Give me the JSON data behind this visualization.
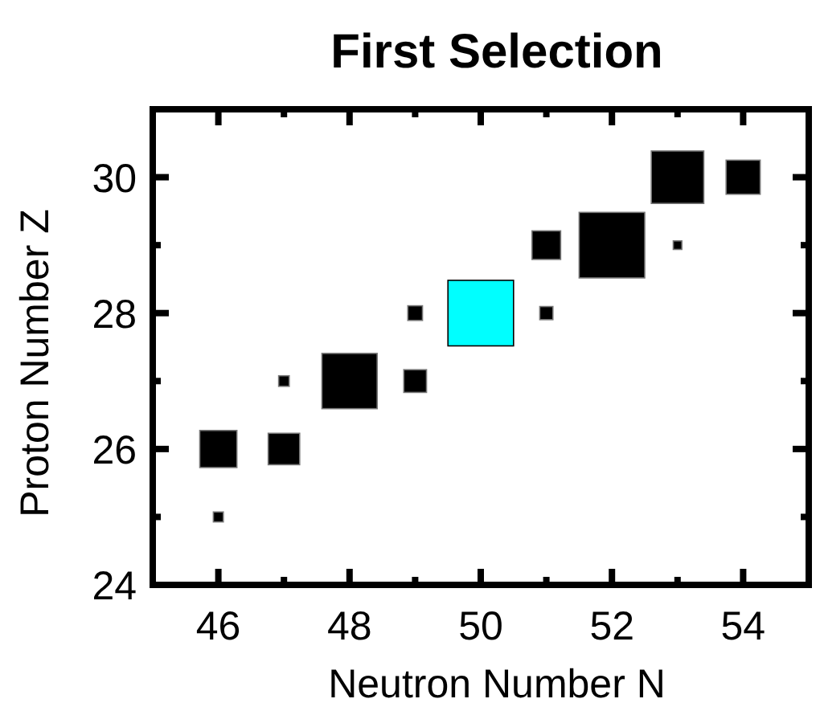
{
  "chart_data": {
    "type": "bubble",
    "title": "First Selection",
    "xlabel": "Neutron Number N",
    "ylabel": "Proton Number Z",
    "marker": "square",
    "x": [
      46,
      46,
      47,
      47,
      48,
      49,
      49,
      50,
      51,
      51,
      52,
      53,
      53,
      54
    ],
    "values": [
      25,
      26,
      26,
      27,
      27,
      27,
      28,
      28,
      28,
      29,
      29,
      30,
      29,
      30
    ],
    "sizes": [
      0.023,
      0.32,
      0.23,
      0.026,
      0.71,
      0.12,
      0.05,
      1,
      0.04,
      0.19,
      1,
      0.64,
      0.017,
      0.27
    ],
    "colors": [
      "#000000",
      "#000000",
      "#000000",
      "#000000",
      "#000000",
      "#000000",
      "#000000",
      "#00ffff",
      "#000000",
      "#000000",
      "#000000",
      "#000000",
      "#000000",
      "#000000"
    ],
    "xlim": [
      45,
      55
    ],
    "ylim": [
      24,
      31
    ],
    "xticks": [
      46,
      {
        "value": 47,
        "label": null
      },
      48,
      {
        "value": 49,
        "label": null
      },
      50,
      {
        "value": 51,
        "label": null
      },
      52,
      {
        "value": 53,
        "label": null
      },
      54
    ],
    "yticks": [
      24,
      {
        "value": 25,
        "label": null
      },
      26,
      {
        "value": 27,
        "label": null
      },
      28,
      {
        "value": 29,
        "label": null
      },
      30
    ],
    "grid": false
  }
}
